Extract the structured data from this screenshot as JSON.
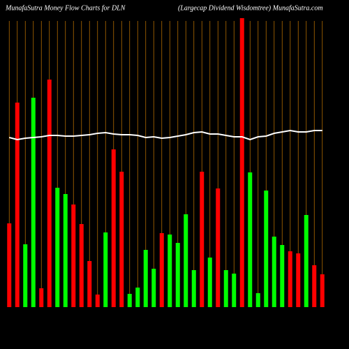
{
  "chart_data": {
    "type": "bar",
    "title": "MunafaSutra  Money Flow  Charts for DLN",
    "subtitle": "(Largecap Dividend Wisdomtree) MunafaSutra.com",
    "categories": [
      null,
      null,
      null,
      null,
      null,
      null,
      null,
      null,
      null,
      null,
      null,
      null,
      null,
      null,
      null,
      null,
      null,
      null,
      null,
      null,
      null,
      null,
      null,
      null,
      null,
      null,
      null,
      null,
      null,
      null,
      null,
      null,
      null,
      null,
      null,
      null,
      null,
      null,
      null,
      null
    ],
    "values": [
      120,
      293,
      90,
      300,
      27,
      326,
      171,
      162,
      147,
      119,
      66,
      18,
      107,
      226,
      194,
      19,
      28,
      82,
      55,
      106,
      104,
      92,
      133,
      53,
      194,
      71,
      170,
      53,
      48,
      414,
      193,
      20,
      167,
      101,
      89,
      80,
      77,
      132,
      60,
      47
    ],
    "colors": [
      "#ff0000",
      "#ff0000",
      "#00ff00",
      "#00ff00",
      "#ff0000",
      "#ff0000",
      "#00ff00",
      "#00ff00",
      "#ff0000",
      "#ff0000",
      "#ff0000",
      "#ff0000",
      "#00ff00",
      "#ff0000",
      "#ff0000",
      "#00ff00",
      "#00ff00",
      "#00ff00",
      "#00ff00",
      "#ff0000",
      "#00ff00",
      "#00ff00",
      "#00ff00",
      "#00ff00",
      "#ff0000",
      "#00ff00",
      "#ff0000",
      "#00ff00",
      "#00ff00",
      "#ff0000",
      "#00ff00",
      "#00ff00",
      "#00ff00",
      "#00ff00",
      "#00ff00",
      "#ff0000",
      "#ff0000",
      "#00ff00",
      "#ff0000",
      "#ff0000"
    ],
    "line": {
      "color": "#ffffff",
      "values": [
        243,
        240,
        242,
        243,
        244,
        246,
        246,
        245,
        245,
        246,
        247,
        249,
        250,
        248,
        247,
        247,
        246,
        243,
        244,
        242,
        243,
        245,
        247,
        250,
        251,
        248,
        248,
        246,
        244,
        244,
        240,
        244,
        245,
        249,
        251,
        253,
        251,
        251,
        253,
        253
      ]
    },
    "grid_color": "#b36b00",
    "ylim": [
      0,
      415
    ],
    "grid": true
  }
}
